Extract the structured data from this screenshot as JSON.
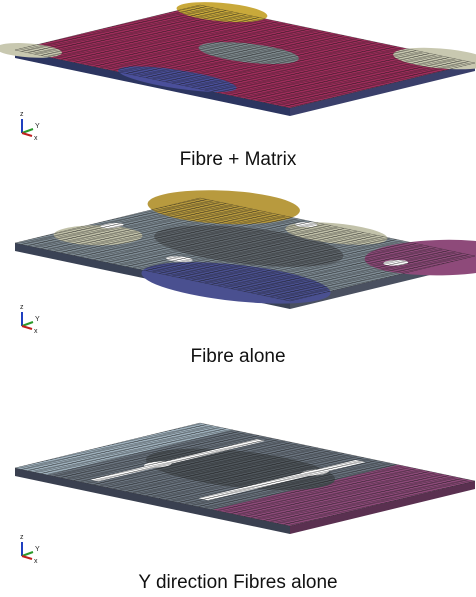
{
  "panels": [
    {
      "caption": "Fibre + Matrix"
    },
    {
      "caption": "Fibre alone"
    },
    {
      "caption": "Y direction Fibres alone"
    }
  ],
  "triad": {
    "z": "z",
    "y": "Y",
    "x": "x"
  }
}
